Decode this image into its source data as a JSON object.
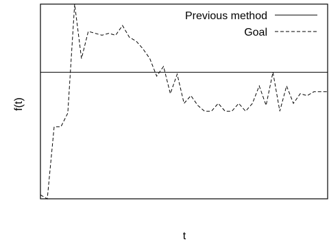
{
  "chart_data": {
    "type": "line",
    "title": "",
    "xlabel": "t",
    "ylabel": "f(t)",
    "xlim": [
      0,
      42
    ],
    "ylim": [
      0,
      1
    ],
    "grid": false,
    "legend_position": "top-right",
    "series": [
      {
        "name": "Previous method",
        "style": "solid",
        "x": [
          0,
          42
        ],
        "y": [
          0.65,
          0.65
        ]
      },
      {
        "name": "Goal",
        "style": "dashed",
        "x": [
          0,
          1,
          2,
          3,
          4,
          5,
          6,
          7,
          8,
          9,
          10,
          11,
          12,
          13,
          14,
          15,
          16,
          17,
          18,
          19,
          20,
          21,
          22,
          23,
          24,
          25,
          26,
          27,
          28,
          29,
          30,
          31,
          32,
          33,
          34,
          35,
          36,
          37,
          38,
          39,
          40,
          41,
          42
        ],
        "y": [
          0.02,
          0.0,
          0.37,
          0.37,
          0.44,
          1.0,
          0.72,
          0.86,
          0.85,
          0.84,
          0.85,
          0.84,
          0.89,
          0.83,
          0.81,
          0.77,
          0.72,
          0.63,
          0.68,
          0.54,
          0.64,
          0.49,
          0.53,
          0.48,
          0.45,
          0.45,
          0.49,
          0.45,
          0.45,
          0.49,
          0.45,
          0.49,
          0.58,
          0.48,
          0.65,
          0.45,
          0.58,
          0.49,
          0.54,
          0.53,
          0.55,
          0.55,
          0.55
        ]
      }
    ]
  }
}
